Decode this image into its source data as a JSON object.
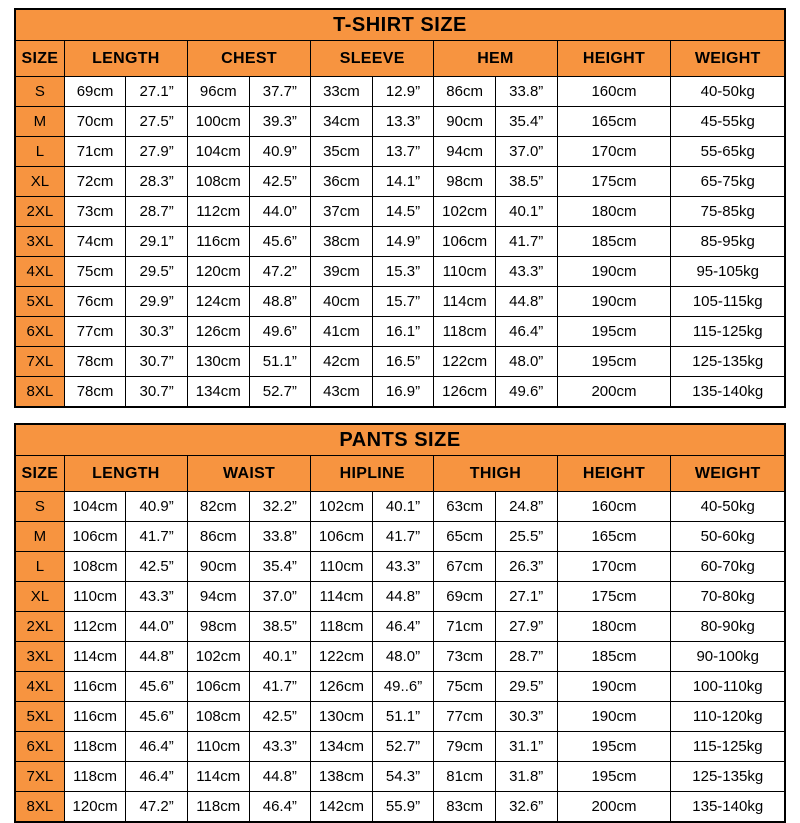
{
  "accent_color": "#f79440",
  "tables": [
    {
      "title": "T-SHIRT SIZE",
      "size_header": "SIZE",
      "dual_columns": [
        "LENGTH",
        "CHEST",
        "SLEEVE",
        "HEM"
      ],
      "single_columns": [
        "HEIGHT",
        "WEIGHT"
      ],
      "rows": [
        {
          "size": "S",
          "values": [
            "69cm",
            "27.1”",
            "96cm",
            "37.7”",
            "33cm",
            "12.9”",
            "86cm",
            "33.8”"
          ],
          "singles": [
            "160cm",
            "40-50kg"
          ]
        },
        {
          "size": "M",
          "values": [
            "70cm",
            "27.5”",
            "100cm",
            "39.3”",
            "34cm",
            "13.3”",
            "90cm",
            "35.4”"
          ],
          "singles": [
            "165cm",
            "45-55kg"
          ]
        },
        {
          "size": "L",
          "values": [
            "71cm",
            "27.9”",
            "104cm",
            "40.9”",
            "35cm",
            "13.7”",
            "94cm",
            "37.0”"
          ],
          "singles": [
            "170cm",
            "55-65kg"
          ]
        },
        {
          "size": "XL",
          "values": [
            "72cm",
            "28.3”",
            "108cm",
            "42.5”",
            "36cm",
            "14.1”",
            "98cm",
            "38.5”"
          ],
          "singles": [
            "175cm",
            "65-75kg"
          ]
        },
        {
          "size": "2XL",
          "values": [
            "73cm",
            "28.7”",
            "112cm",
            "44.0”",
            "37cm",
            "14.5”",
            "102cm",
            "40.1”"
          ],
          "singles": [
            "180cm",
            "75-85kg"
          ]
        },
        {
          "size": "3XL",
          "values": [
            "74cm",
            "29.1”",
            "116cm",
            "45.6”",
            "38cm",
            "14.9”",
            "106cm",
            "41.7”"
          ],
          "singles": [
            "185cm",
            "85-95kg"
          ]
        },
        {
          "size": "4XL",
          "values": [
            "75cm",
            "29.5”",
            "120cm",
            "47.2”",
            "39cm",
            "15.3”",
            "110cm",
            "43.3”"
          ],
          "singles": [
            "190cm",
            "95-105kg"
          ]
        },
        {
          "size": "5XL",
          "values": [
            "76cm",
            "29.9”",
            "124cm",
            "48.8”",
            "40cm",
            "15.7”",
            "114cm",
            "44.8”"
          ],
          "singles": [
            "190cm",
            "105-115kg"
          ]
        },
        {
          "size": "6XL",
          "values": [
            "77cm",
            "30.3”",
            "126cm",
            "49.6”",
            "41cm",
            "16.1”",
            "118cm",
            "46.4”"
          ],
          "singles": [
            "195cm",
            "115-125kg"
          ]
        },
        {
          "size": "7XL",
          "values": [
            "78cm",
            "30.7”",
            "130cm",
            "51.1”",
            "42cm",
            "16.5”",
            "122cm",
            "48.0”"
          ],
          "singles": [
            "195cm",
            "125-135kg"
          ]
        },
        {
          "size": "8XL",
          "values": [
            "78cm",
            "30.7”",
            "134cm",
            "52.7”",
            "43cm",
            "16.9”",
            "126cm",
            "49.6”"
          ],
          "singles": [
            "200cm",
            "135-140kg"
          ]
        }
      ]
    },
    {
      "title": "PANTS SIZE",
      "size_header": "SIZE",
      "dual_columns": [
        "LENGTH",
        "WAIST",
        "HIPLINE",
        "THIGH"
      ],
      "single_columns": [
        "HEIGHT",
        "WEIGHT"
      ],
      "rows": [
        {
          "size": "S",
          "values": [
            "104cm",
            "40.9”",
            "82cm",
            "32.2”",
            "102cm",
            "40.1”",
            "63cm",
            "24.8”"
          ],
          "singles": [
            "160cm",
            "40-50kg"
          ]
        },
        {
          "size": "M",
          "values": [
            "106cm",
            "41.7”",
            "86cm",
            "33.8”",
            "106cm",
            "41.7”",
            "65cm",
            "25.5”"
          ],
          "singles": [
            "165cm",
            "50-60kg"
          ]
        },
        {
          "size": "L",
          "values": [
            "108cm",
            "42.5”",
            "90cm",
            "35.4”",
            "110cm",
            "43.3”",
            "67cm",
            "26.3”"
          ],
          "singles": [
            "170cm",
            "60-70kg"
          ]
        },
        {
          "size": "XL",
          "values": [
            "110cm",
            "43.3”",
            "94cm",
            "37.0”",
            "114cm",
            "44.8”",
            "69cm",
            "27.1”"
          ],
          "singles": [
            "175cm",
            "70-80kg"
          ]
        },
        {
          "size": "2XL",
          "values": [
            "112cm",
            "44.0”",
            "98cm",
            "38.5”",
            "118cm",
            "46.4”",
            "71cm",
            "27.9”"
          ],
          "singles": [
            "180cm",
            "80-90kg"
          ]
        },
        {
          "size": "3XL",
          "values": [
            "114cm",
            "44.8”",
            "102cm",
            "40.1”",
            "122cm",
            "48.0”",
            "73cm",
            "28.7”"
          ],
          "singles": [
            "185cm",
            "90-100kg"
          ]
        },
        {
          "size": "4XL",
          "values": [
            "116cm",
            "45.6”",
            "106cm",
            "41.7”",
            "126cm",
            "49..6”",
            "75cm",
            "29.5”"
          ],
          "singles": [
            "190cm",
            "100-110kg"
          ]
        },
        {
          "size": "5XL",
          "values": [
            "116cm",
            "45.6”",
            "108cm",
            "42.5”",
            "130cm",
            "51.1”",
            "77cm",
            "30.3”"
          ],
          "singles": [
            "190cm",
            "110-120kg"
          ]
        },
        {
          "size": "6XL",
          "values": [
            "118cm",
            "46.4”",
            "110cm",
            "43.3”",
            "134cm",
            "52.7”",
            "79cm",
            "31.1”"
          ],
          "singles": [
            "195cm",
            "115-125kg"
          ]
        },
        {
          "size": "7XL",
          "values": [
            "118cm",
            "46.4”",
            "114cm",
            "44.8”",
            "138cm",
            "54.3”",
            "81cm",
            "31.8”"
          ],
          "singles": [
            "195cm",
            "125-135kg"
          ]
        },
        {
          "size": "8XL",
          "values": [
            "120cm",
            "47.2”",
            "118cm",
            "46.4”",
            "142cm",
            "55.9”",
            "83cm",
            "32.6”"
          ],
          "singles": [
            "200cm",
            "135-140kg"
          ]
        }
      ]
    }
  ]
}
